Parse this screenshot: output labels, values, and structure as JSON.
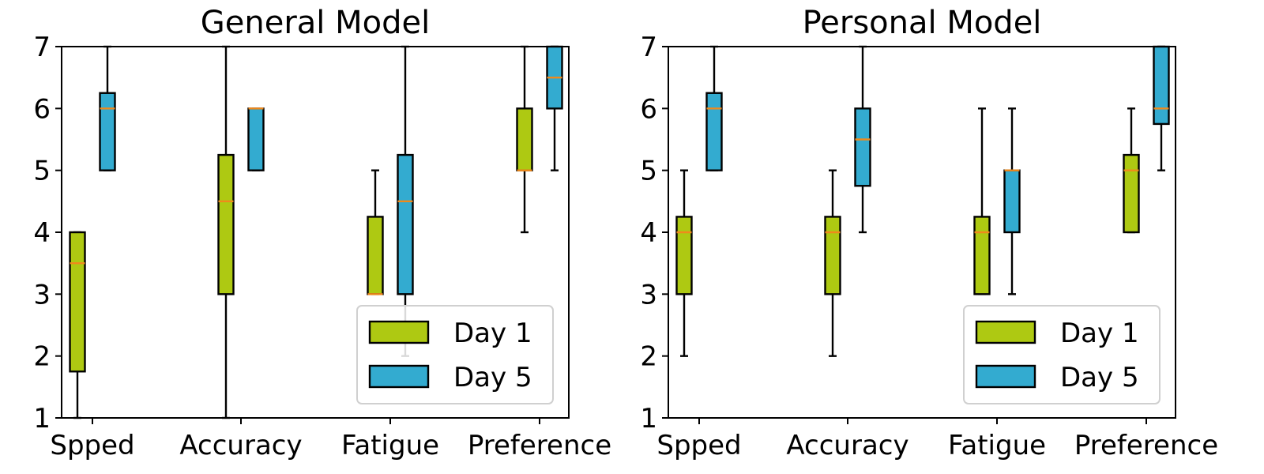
{
  "colors": {
    "day1": "#aec912",
    "day5": "#33abd0",
    "median": "#f08a1b",
    "frame": "#000000"
  },
  "chart_data": [
    {
      "type": "box",
      "title": "General Model",
      "categories": [
        "Spped",
        "Accuracy",
        "Fatigue",
        "Preference"
      ],
      "ylim": [
        1,
        7
      ],
      "yticks": [
        "1",
        "2",
        "3",
        "4",
        "5",
        "6",
        "7"
      ],
      "grid": false,
      "legend": {
        "placement": "lower-right",
        "entries": [
          "Day 1",
          "Day 5"
        ]
      },
      "series": [
        {
          "name": "Day 1",
          "color_key": "day1",
          "boxes": [
            {
              "whislo": 1,
              "q1": 1.75,
              "med": 3.5,
              "q3": 4,
              "whishi": 4
            },
            {
              "whislo": 1,
              "q1": 3,
              "med": 4.5,
              "q3": 5.25,
              "whishi": 7
            },
            {
              "whislo": 3,
              "q1": 3,
              "med": 3,
              "q3": 4.25,
              "whishi": 5
            },
            {
              "whislo": 4,
              "q1": 5,
              "med": 5,
              "q3": 6,
              "whishi": 7
            }
          ]
        },
        {
          "name": "Day 5",
          "color_key": "day5",
          "boxes": [
            {
              "whislo": 5,
              "q1": 5,
              "med": 6,
              "q3": 6.25,
              "whishi": 7
            },
            {
              "whislo": 5,
              "q1": 5,
              "med": 6,
              "q3": 6,
              "whishi": 6
            },
            {
              "whislo": 2,
              "q1": 3,
              "med": 4.5,
              "q3": 5.25,
              "whishi": 7
            },
            {
              "whislo": 5,
              "q1": 6,
              "med": 6.5,
              "q3": 7,
              "whishi": 7
            }
          ]
        }
      ]
    },
    {
      "type": "box",
      "title": "Personal Model",
      "categories": [
        "Spped",
        "Accuracy",
        "Fatigue",
        "Preference"
      ],
      "ylim": [
        1,
        7
      ],
      "yticks": [
        "1",
        "2",
        "3",
        "4",
        "5",
        "6",
        "7"
      ],
      "grid": false,
      "legend": {
        "placement": "lower-right",
        "entries": [
          "Day 1",
          "Day 5"
        ]
      },
      "series": [
        {
          "name": "Day 1",
          "color_key": "day1",
          "boxes": [
            {
              "whislo": 2,
              "q1": 3,
              "med": 4,
              "q3": 4.25,
              "whishi": 5
            },
            {
              "whislo": 2,
              "q1": 3,
              "med": 4,
              "q3": 4.25,
              "whishi": 5
            },
            {
              "whislo": 3,
              "q1": 3,
              "med": 4,
              "q3": 4.25,
              "whishi": 6
            },
            {
              "whislo": 4,
              "q1": 4,
              "med": 5,
              "q3": 5.25,
              "whishi": 6
            }
          ]
        },
        {
          "name": "Day 5",
          "color_key": "day5",
          "boxes": [
            {
              "whislo": 5,
              "q1": 5,
              "med": 6,
              "q3": 6.25,
              "whishi": 7
            },
            {
              "whislo": 4,
              "q1": 4.75,
              "med": 5.5,
              "q3": 6,
              "whishi": 7
            },
            {
              "whislo": 3,
              "q1": 4,
              "med": 5,
              "q3": 5,
              "whishi": 6
            },
            {
              "whislo": 5,
              "q1": 5.75,
              "med": 6,
              "q3": 7,
              "whishi": 7
            }
          ]
        }
      ]
    }
  ]
}
